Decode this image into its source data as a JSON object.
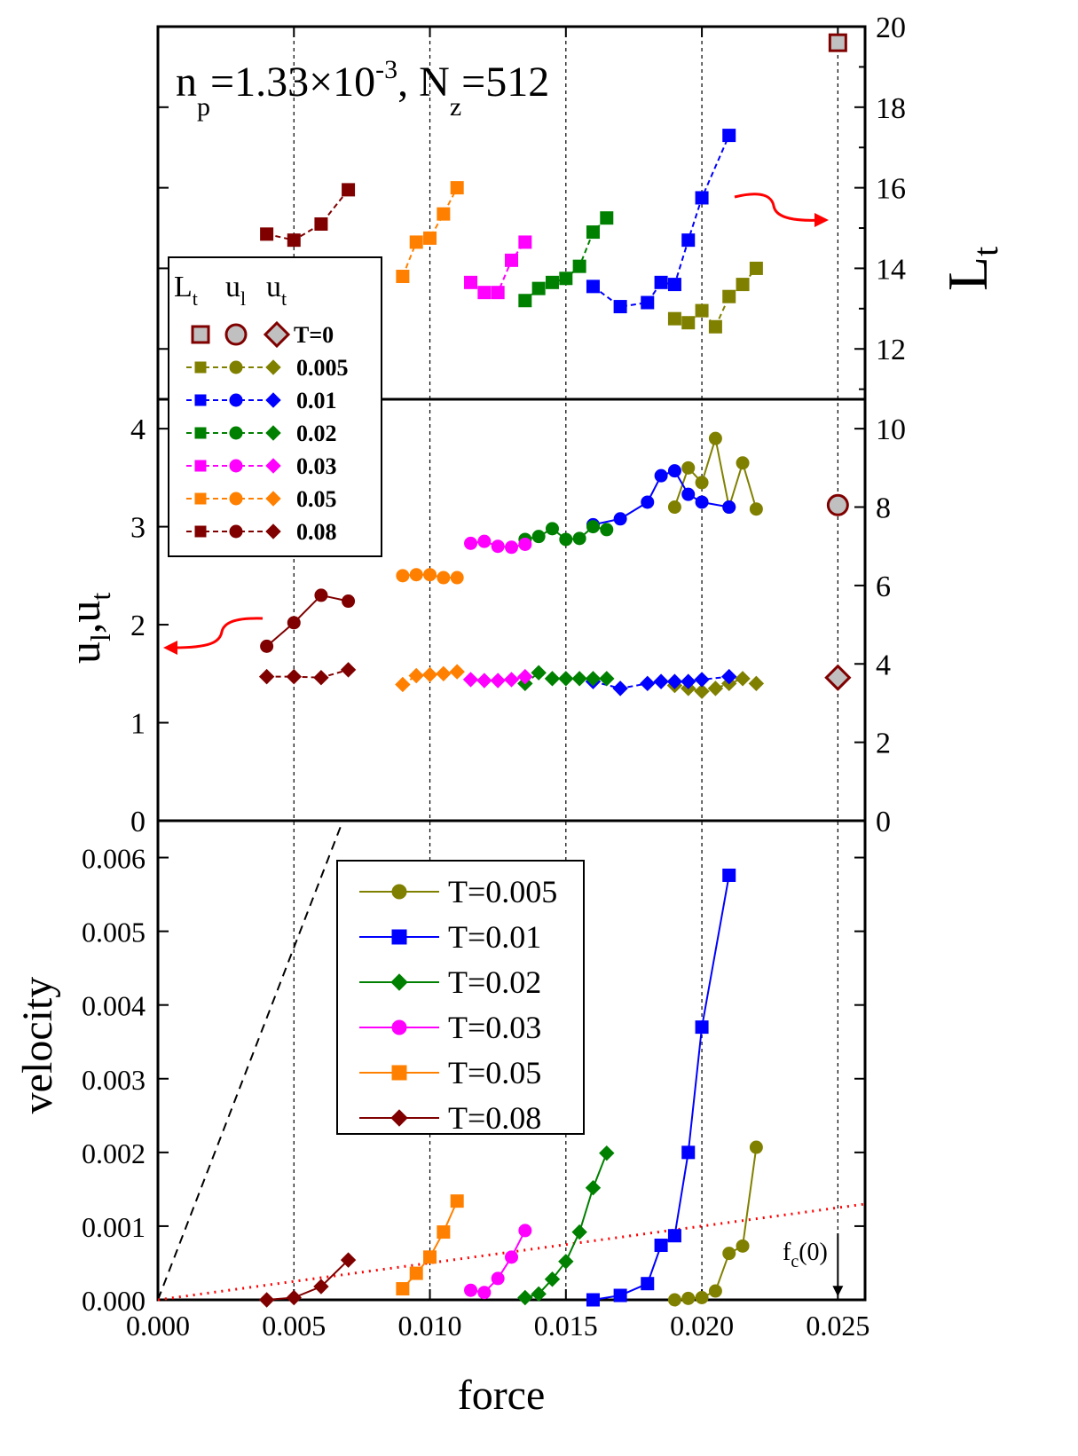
{
  "chart_data": [
    {
      "panel": "top",
      "type": "line",
      "title": "n_p=1.33×10^-3, N_z=512",
      "annotation_parts": {
        "n": "n",
        "n_sub": "p",
        "eq1": "=1.33×10",
        "exp": "-3",
        "comma": ", N",
        "n2_sub": "z",
        "eq2": "=512"
      },
      "ylabel": "L",
      "ylabel_sub": "t",
      "y_axis_side": "right",
      "xlim": [
        0,
        0.026
      ],
      "ylim": [
        10.75,
        20
      ],
      "yticks": [
        12,
        14,
        16,
        18,
        20
      ],
      "series": [
        {
          "T": "0.005",
          "color": "#808000",
          "marker": "square",
          "x": [
            0.019,
            0.0195,
            0.02,
            0.0205,
            0.021,
            0.0215,
            0.022
          ],
          "y": [
            12.75,
            12.65,
            12.95,
            12.55,
            13.3,
            13.6,
            14.0
          ]
        },
        {
          "T": "0.01",
          "color": "#0000ff",
          "marker": "square",
          "x": [
            0.016,
            0.017,
            0.018,
            0.0185,
            0.019,
            0.0195,
            0.02,
            0.021
          ],
          "y": [
            13.55,
            13.05,
            13.15,
            13.65,
            13.6,
            14.7,
            15.75,
            17.3
          ]
        },
        {
          "T": "0.02",
          "color": "#008000",
          "marker": "square",
          "x": [
            0.0135,
            0.014,
            0.0145,
            0.015,
            0.0155,
            0.016,
            0.0165
          ],
          "y": [
            13.2,
            13.5,
            13.65,
            13.75,
            14.05,
            14.9,
            15.25
          ]
        },
        {
          "T": "0.03",
          "color": "#ff00ff",
          "marker": "square",
          "x": [
            0.0115,
            0.012,
            0.0125,
            0.013,
            0.0135
          ],
          "y": [
            13.65,
            13.4,
            13.4,
            14.2,
            14.65
          ]
        },
        {
          "T": "0.05",
          "color": "#ff8000",
          "marker": "square",
          "x": [
            0.009,
            0.0095,
            0.01,
            0.0105,
            0.011
          ],
          "y": [
            13.8,
            14.65,
            14.75,
            15.35,
            16.0
          ]
        },
        {
          "T": "0.08",
          "color": "#800000",
          "marker": "square",
          "x": [
            0.004,
            0.005,
            0.006,
            0.007
          ],
          "y": [
            14.85,
            14.7,
            15.1,
            15.95
          ]
        },
        {
          "T": "0",
          "color": "#800000",
          "fill": "#c0c0c0",
          "marker": "square-large",
          "x": [
            0.025
          ],
          "y": [
            19.6
          ]
        }
      ]
    },
    {
      "panel": "middle",
      "type": "line",
      "ylabel_left": "u_l,u_t",
      "ylabel_parts": {
        "u1": "u",
        "s1": "l",
        "comma": ",u",
        "s2": "t"
      },
      "xlim": [
        0,
        0.026
      ],
      "ylim_left": [
        0,
        4.3
      ],
      "yticks_left": [
        0,
        1,
        2,
        3,
        4
      ],
      "ylim_right": [
        0,
        10.75
      ],
      "yticks_right": [
        0,
        2,
        4,
        6,
        8,
        10
      ],
      "series_ul": [
        {
          "T": "0.005",
          "color": "#808000",
          "x": [
            0.019,
            0.0195,
            0.02,
            0.0205,
            0.021,
            0.0215,
            0.022
          ],
          "y": [
            3.2,
            3.6,
            3.45,
            3.9,
            3.2,
            3.65,
            3.18
          ]
        },
        {
          "T": "0.01",
          "color": "#0000ff",
          "x": [
            0.016,
            0.017,
            0.018,
            0.0185,
            0.019,
            0.0195,
            0.02,
            0.021
          ],
          "y": [
            3.02,
            3.08,
            3.25,
            3.52,
            3.57,
            3.33,
            3.25,
            3.2
          ]
        },
        {
          "T": "0.02",
          "color": "#008000",
          "x": [
            0.0135,
            0.014,
            0.0145,
            0.015,
            0.0155,
            0.016,
            0.0165
          ],
          "y": [
            2.87,
            2.9,
            2.98,
            2.87,
            2.88,
            3.0,
            2.97
          ]
        },
        {
          "T": "0.03",
          "color": "#ff00ff",
          "x": [
            0.0115,
            0.012,
            0.0125,
            0.013,
            0.0135
          ],
          "y": [
            2.83,
            2.85,
            2.8,
            2.79,
            2.82
          ]
        },
        {
          "T": "0.05",
          "color": "#ff8000",
          "x": [
            0.009,
            0.0095,
            0.01,
            0.0105,
            0.011
          ],
          "y": [
            2.5,
            2.51,
            2.51,
            2.48,
            2.48
          ]
        },
        {
          "T": "0.08",
          "color": "#800000",
          "x": [
            0.004,
            0.005,
            0.006,
            0.007
          ],
          "y": [
            1.78,
            2.02,
            2.3,
            2.24
          ]
        },
        {
          "T": "0",
          "color": "#800000",
          "fill": "#c0c0c0",
          "x": [
            0.025
          ],
          "y": [
            3.22
          ]
        }
      ],
      "series_ut": [
        {
          "T": "0.005",
          "color": "#808000",
          "x": [
            0.019,
            0.0195,
            0.02,
            0.0205,
            0.021,
            0.0215,
            0.022
          ],
          "y": [
            1.38,
            1.35,
            1.32,
            1.35,
            1.4,
            1.45,
            1.4
          ]
        },
        {
          "T": "0.01",
          "color": "#0000ff",
          "x": [
            0.016,
            0.017,
            0.018,
            0.0185,
            0.019,
            0.0195,
            0.02,
            0.021
          ],
          "y": [
            1.42,
            1.35,
            1.4,
            1.42,
            1.42,
            1.42,
            1.44,
            1.47
          ]
        },
        {
          "T": "0.02",
          "color": "#008000",
          "x": [
            0.0135,
            0.014,
            0.0145,
            0.015,
            0.0155,
            0.016,
            0.0165
          ],
          "y": [
            1.4,
            1.51,
            1.45,
            1.45,
            1.45,
            1.45,
            1.45
          ]
        },
        {
          "T": "0.03",
          "color": "#ff00ff",
          "x": [
            0.0115,
            0.012,
            0.0125,
            0.013,
            0.0135
          ],
          "y": [
            1.44,
            1.43,
            1.43,
            1.44,
            1.47
          ]
        },
        {
          "T": "0.05",
          "color": "#ff8000",
          "x": [
            0.009,
            0.0095,
            0.01,
            0.0105,
            0.011
          ],
          "y": [
            1.39,
            1.48,
            1.49,
            1.5,
            1.52
          ]
        },
        {
          "T": "0.08",
          "color": "#800000",
          "x": [
            0.004,
            0.005,
            0.006,
            0.007
          ],
          "y": [
            1.47,
            1.47,
            1.46,
            1.54
          ]
        },
        {
          "T": "0",
          "color": "#800000",
          "fill": "#c0c0c0",
          "x": [
            0.025
          ],
          "y": [
            1.46
          ]
        }
      ],
      "legend": {
        "header": [
          "L",
          "u",
          "u"
        ],
        "header_subs": [
          "t",
          "l",
          "t"
        ],
        "entries": [
          "T=0",
          "0.005",
          "0.01",
          "0.02",
          "0.03",
          "0.05",
          "0.08"
        ],
        "colors": [
          "#800000",
          "#808000",
          "#0000ff",
          "#008000",
          "#ff00ff",
          "#ff8000",
          "#800000"
        ]
      }
    },
    {
      "panel": "bottom",
      "type": "line",
      "xlabel": "force",
      "ylabel": "velocity",
      "xlim": [
        0,
        0.026
      ],
      "ylim": [
        0,
        0.0065
      ],
      "xticks": [
        0.0,
        0.005,
        0.01,
        0.015,
        0.02,
        0.025
      ],
      "xtick_labels": [
        "0.000",
        "0.005",
        "0.010",
        "0.015",
        "0.020",
        "0.025"
      ],
      "yticks": [
        0,
        0.001,
        0.002,
        0.003,
        0.004,
        0.005,
        0.006
      ],
      "ytick_labels": [
        "0.000",
        "0.001",
        "0.002",
        "0.003",
        "0.004",
        "0.005",
        "0.006"
      ],
      "series": [
        {
          "name": "T=0.005",
          "color": "#808000",
          "marker": "circle",
          "x": [
            0.019,
            0.0195,
            0.02,
            0.0205,
            0.021,
            0.0215,
            0.022
          ],
          "y": [
            0.0,
            2e-05,
            3e-05,
            0.00012,
            0.00063,
            0.00073,
            0.00207
          ]
        },
        {
          "name": "T=0.01",
          "color": "#0000ff",
          "marker": "square",
          "x": [
            0.016,
            0.017,
            0.018,
            0.0185,
            0.019,
            0.0195,
            0.02,
            0.021
          ],
          "y": [
            0.0,
            6e-05,
            0.00022,
            0.00074,
            0.00087,
            0.002,
            0.0037,
            0.00576
          ]
        },
        {
          "name": "T=0.02",
          "color": "#008000",
          "marker": "diamond",
          "x": [
            0.0135,
            0.014,
            0.0145,
            0.015,
            0.0155,
            0.016,
            0.0165
          ],
          "y": [
            3e-05,
            8e-05,
            0.00028,
            0.00052,
            0.00092,
            0.00152,
            0.00199
          ]
        },
        {
          "name": "T=0.03",
          "color": "#ff00ff",
          "marker": "circle",
          "x": [
            0.0115,
            0.012,
            0.0125,
            0.013,
            0.0135
          ],
          "y": [
            0.00013,
            0.0001,
            0.00029,
            0.00058,
            0.00094
          ]
        },
        {
          "name": "T=0.05",
          "color": "#ff8000",
          "marker": "square",
          "x": [
            0.009,
            0.0095,
            0.01,
            0.0105,
            0.011
          ],
          "y": [
            0.00015,
            0.00036,
            0.00058,
            0.00092,
            0.00134
          ]
        },
        {
          "name": "T=0.08",
          "color": "#800000",
          "marker": "diamond",
          "x": [
            0.004,
            0.005,
            0.006,
            0.007
          ],
          "y": [
            0.0,
            3e-05,
            0.00018,
            0.00054
          ]
        }
      ],
      "reference_lines": [
        {
          "style": "dashed",
          "color": "#000000",
          "x": [
            0.0,
            0.0068
          ],
          "y": [
            0.0,
            0.0065
          ]
        },
        {
          "style": "dotted",
          "color": "#ff0000",
          "x": [
            0.0,
            0.026
          ],
          "y": [
            0.0,
            0.0013
          ]
        }
      ],
      "annotation": {
        "text": "f",
        "sub": "c",
        "suffix": "(0)",
        "x": 0.025
      }
    }
  ],
  "vertical_guides": [
    0.005,
    0.01,
    0.015,
    0.02,
    0.025
  ]
}
